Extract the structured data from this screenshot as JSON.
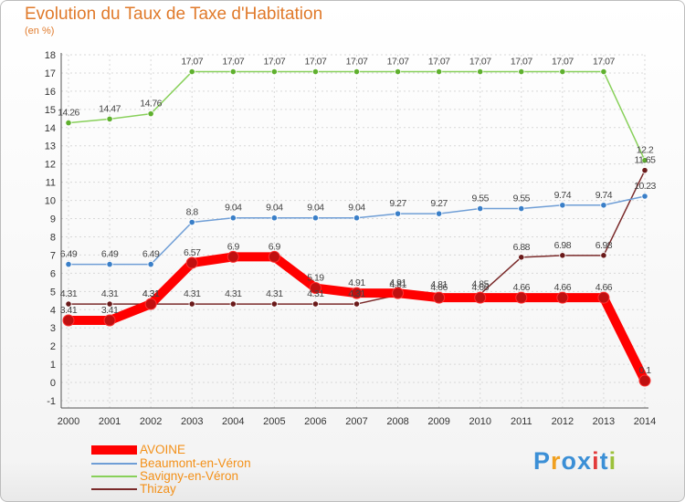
{
  "title": "Evolution du Taux de Taxe d'Habitation",
  "unit": "(en %)",
  "logo": {
    "text": "Proxiti",
    "colors": [
      "#3b8fd6",
      "#f0a020",
      "#3b8fd6",
      "#3b8fd6",
      "#e23b3b",
      "#3b8fd6",
      "#9cc13b"
    ]
  },
  "legend": [
    {
      "label": "AVOINE",
      "color": "#ff0000",
      "width": 10
    },
    {
      "label": "Beaumont-en-Véron",
      "color": "#6f9ed6",
      "width": 2
    },
    {
      "label": "Savigny-en-Véron",
      "color": "#88d05a",
      "width": 2
    },
    {
      "label": "Thizay",
      "color": "#7a2a2a",
      "width": 2
    }
  ],
  "chart_data": {
    "type": "line",
    "categories": [
      "2000",
      "2001",
      "2002",
      "2003",
      "2004",
      "2005",
      "2006",
      "2007",
      "2008",
      "2009",
      "2010",
      "2011",
      "2012",
      "2013",
      "2014"
    ],
    "ylim": [
      -1,
      18
    ],
    "yticks": [
      "-1",
      "0",
      "1",
      "2",
      "3",
      "4",
      "5",
      "6",
      "7",
      "8",
      "9",
      "10",
      "11",
      "12",
      "13",
      "14",
      "15",
      "16",
      "17",
      "18"
    ],
    "grid": true,
    "series": [
      {
        "name": "AVOINE",
        "color": "#ff0000",
        "point_color": "#c01010",
        "values": [
          3.41,
          3.41,
          4.31,
          6.57,
          6.9,
          6.9,
          5.19,
          4.91,
          4.91,
          4.66,
          4.66,
          4.66,
          4.66,
          4.66,
          0.1
        ],
        "labels": [
          "3.41",
          "3.41",
          "4.31",
          "6.57",
          "6.9",
          "6.9",
          "5.19",
          "4.91",
          "4.91",
          "4.66",
          "4.66",
          "4.66",
          "4.66",
          "4.66",
          "0.1"
        ]
      },
      {
        "name": "Beaumont-en-Véron",
        "color": "#6f9ed6",
        "point_color": "#3a7fc8",
        "values": [
          6.49,
          6.49,
          6.49,
          8.8,
          9.04,
          9.04,
          9.04,
          9.04,
          9.27,
          9.27,
          9.55,
          9.55,
          9.74,
          9.74,
          10.23
        ],
        "labels": [
          "6.49",
          "6.49",
          "6.49",
          "8.8",
          "9.04",
          "9.04",
          "9.04",
          "9.04",
          "9.27",
          "9.27",
          "9.55",
          "9.55",
          "9.74",
          "9.74",
          "10.23"
        ]
      },
      {
        "name": "Savigny-en-Véron",
        "color": "#88d05a",
        "point_color": "#5fb02e",
        "values": [
          14.26,
          14.47,
          14.76,
          17.07,
          17.07,
          17.07,
          17.07,
          17.07,
          17.07,
          17.07,
          17.07,
          17.07,
          17.07,
          17.07,
          12.2
        ],
        "labels": [
          "14.26",
          "14.47",
          "14.76",
          "17.07",
          "17.07",
          "17.07",
          "17.07",
          "17.07",
          "17.07",
          "17.07",
          "17.07",
          "17.07",
          "17.07",
          "17.07",
          "12.2"
        ]
      },
      {
        "name": "Thizay",
        "color": "#7a2a2a",
        "point_color": "#6a1a1a",
        "values": [
          4.31,
          4.31,
          4.31,
          4.31,
          4.31,
          4.31,
          4.31,
          4.31,
          4.81,
          4.81,
          4.85,
          6.88,
          6.98,
          6.98,
          11.65
        ],
        "labels": [
          "4.31",
          "4.31",
          "4.31",
          "4.31",
          "4.31",
          "4.31",
          "4.31",
          "4.31",
          "4.81",
          "4.81",
          "4.85",
          "6.88",
          "6.98",
          "6.98",
          "11.65"
        ]
      }
    ]
  }
}
